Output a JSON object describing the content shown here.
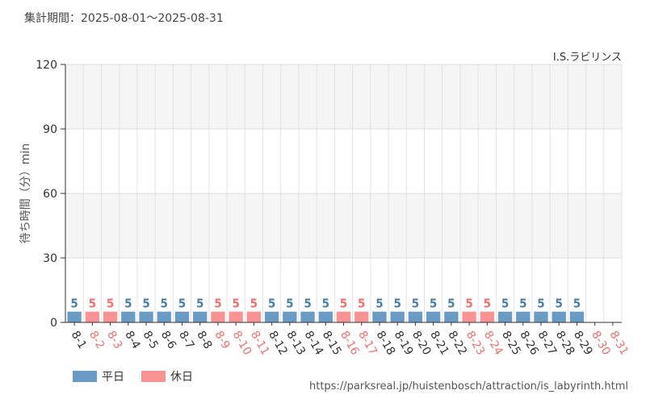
{
  "period_label": "集計期間：2025-08-01〜2025-08-31",
  "source_url": "https://parksreal.jp/huistenbosch/attraction/is_labyrinth.html",
  "colors": {
    "weekday": "#6a9bc4",
    "holiday": "#f99393",
    "grid_band": "#f5f5f5",
    "axis": "#333333"
  },
  "chart_data": {
    "type": "bar",
    "title": "I.S.ラビリンス",
    "ylabel": "待ち時間（分）min",
    "xlabel": "",
    "ylim": [
      0,
      120
    ],
    "yticks": [
      0,
      30,
      60,
      90,
      120
    ],
    "grid": true,
    "legend": "bottom-left",
    "categories": [
      "8-1",
      "8-2",
      "8-3",
      "8-4",
      "8-5",
      "8-6",
      "8-7",
      "8-8",
      "8-9",
      "8-10",
      "8-11",
      "8-12",
      "8-13",
      "8-14",
      "8-15",
      "8-16",
      "8-17",
      "8-18",
      "8-19",
      "8-20",
      "8-21",
      "8-22",
      "8-23",
      "8-24",
      "8-25",
      "8-26",
      "8-27",
      "8-28",
      "8-29",
      "8-30",
      "8-31"
    ],
    "day_type": [
      "weekday",
      "holiday",
      "holiday",
      "weekday",
      "weekday",
      "weekday",
      "weekday",
      "weekday",
      "holiday",
      "holiday",
      "holiday",
      "weekday",
      "weekday",
      "weekday",
      "weekday",
      "holiday",
      "holiday",
      "weekday",
      "weekday",
      "weekday",
      "weekday",
      "weekday",
      "holiday",
      "holiday",
      "weekday",
      "weekday",
      "weekday",
      "weekday",
      "weekday",
      "holiday",
      "holiday"
    ],
    "values": [
      5,
      5,
      5,
      5,
      5,
      5,
      5,
      5,
      5,
      5,
      5,
      5,
      5,
      5,
      5,
      5,
      5,
      5,
      5,
      5,
      5,
      5,
      5,
      5,
      5,
      5,
      5,
      5,
      5,
      null,
      null
    ],
    "series": [
      {
        "name": "平日",
        "key": "weekday"
      },
      {
        "name": "休日",
        "key": "holiday"
      }
    ]
  }
}
